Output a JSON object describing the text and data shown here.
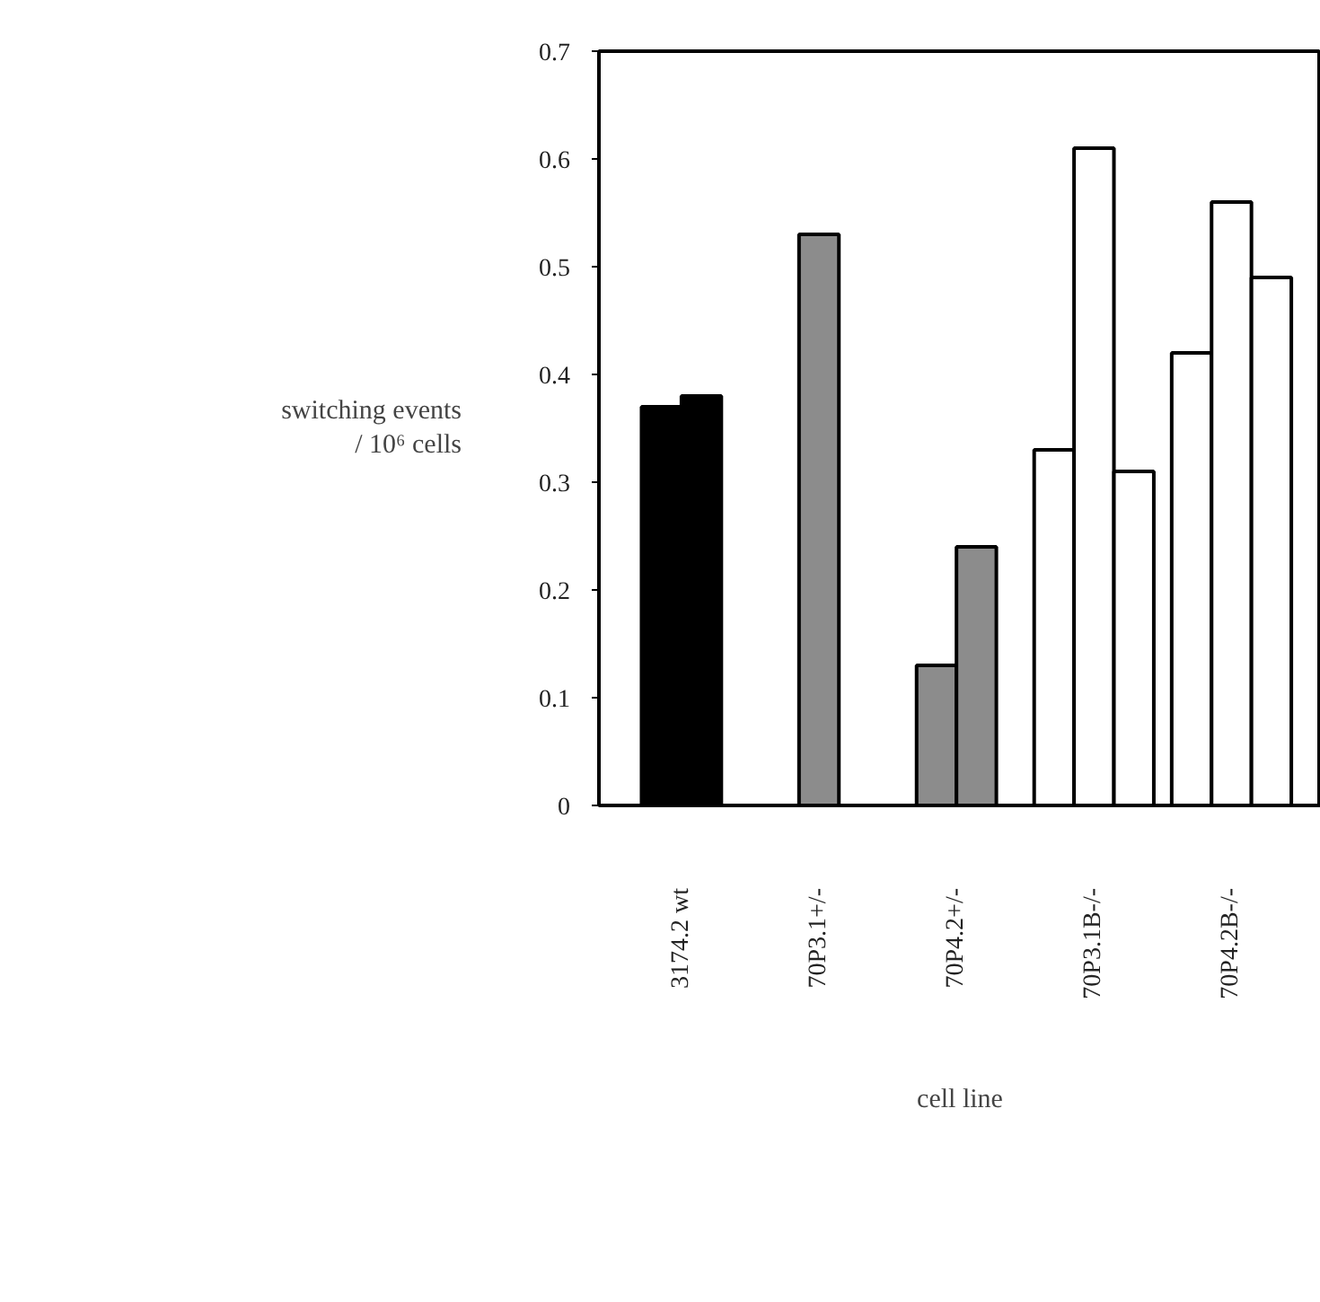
{
  "chart_data": {
    "type": "bar",
    "xlabel": "cell line",
    "ylabel": "switching events\n/ 10⁶ cells",
    "categories": [
      "3174.2 wt",
      "70P3.1+/-",
      "70P4.2+/-",
      "70P3.1B-/-",
      "70P4.2B-/-"
    ],
    "series": [
      {
        "values": [
          0.37,
          0.53,
          0.13,
          0.33,
          0.42
        ],
        "colors": [
          "#000000",
          "#8c8c8c",
          "#8c8c8c",
          "#ffffff",
          "#ffffff"
        ]
      },
      {
        "values": [
          0.38,
          null,
          0.24,
          0.61,
          0.56
        ],
        "colors": [
          "#000000",
          "#8c8c8c",
          "#8c8c8c",
          "#ffffff",
          "#ffffff"
        ]
      },
      {
        "values": [
          null,
          null,
          null,
          0.31,
          0.49
        ],
        "colors": [
          "#000000",
          "#8c8c8c",
          "#8c8c8c",
          "#ffffff",
          "#ffffff"
        ]
      }
    ],
    "ylim": [
      0,
      0.7
    ],
    "yticks": [
      0,
      0.1,
      0.2,
      0.3,
      0.4,
      0.5,
      0.6,
      0.7
    ],
    "grid": false
  }
}
